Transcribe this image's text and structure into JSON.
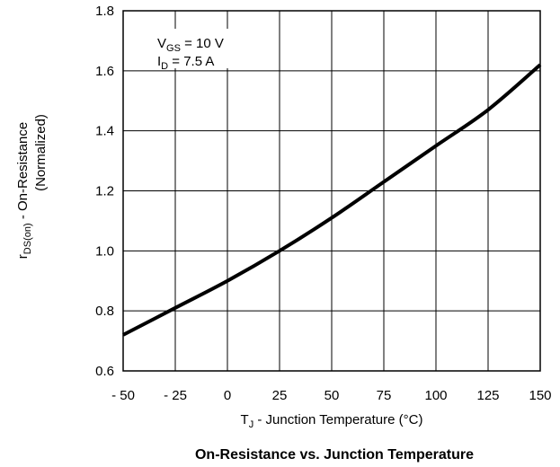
{
  "chart_data": {
    "type": "line",
    "title": "On-Resistance vs. Junction Temperature",
    "xlabel": {
      "main": "T",
      "sub": "J",
      "rest": " - Junction Temperature (°C)"
    },
    "ylabel": {
      "line1_main": "r",
      "line1_sub": "DS(on)",
      "line1_rest": "  -  On-Resistance",
      "line2": "(Normalized)"
    },
    "xlim": [
      -50,
      150
    ],
    "ylim": [
      0.6,
      1.8
    ],
    "x_ticks": [
      -50,
      -25,
      0,
      25,
      50,
      75,
      100,
      125,
      150
    ],
    "x_tick_labels": [
      "- 50",
      "- 25",
      "0",
      "25",
      "50",
      "75",
      "100",
      "125",
      "150"
    ],
    "y_ticks": [
      0.6,
      0.8,
      1.0,
      1.2,
      1.4,
      1.6,
      1.8
    ],
    "y_tick_labels": [
      "0.6",
      "0.8",
      "1.0",
      "1.2",
      "1.4",
      "1.6",
      "1.8"
    ],
    "grid": true,
    "annotations": [
      {
        "main": "V",
        "sub": "GS",
        "rest": " = 10 V"
      },
      {
        "main": "I",
        "sub": "D",
        "rest": " = 7.5 A"
      }
    ],
    "series": [
      {
        "x": [
          -50,
          -25,
          0,
          25,
          50,
          75,
          100,
          125,
          150
        ],
        "y": [
          0.72,
          0.81,
          0.9,
          1.0,
          1.11,
          1.23,
          1.35,
          1.47,
          1.62
        ]
      }
    ],
    "line_color": "#000000"
  }
}
